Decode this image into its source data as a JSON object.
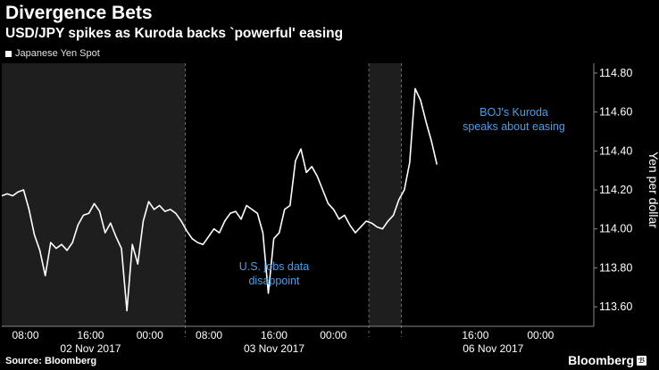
{
  "header": {
    "title": "Divergence Bets",
    "subtitle": "USD/JPY spikes as Kuroda backs `powerful' easing"
  },
  "footer": {
    "source": "Source: Bloomberg",
    "brand": "Bloomberg",
    "brand_mark": "ℬ"
  },
  "colors": {
    "background": "#000000",
    "shade": "#1e1e1e",
    "line": "#ffffff",
    "annotation": "#4a9ee8",
    "grid": "#6a6a6a"
  },
  "chart_data": {
    "type": "line",
    "ylabel": "Yen per dollar",
    "ylim": [
      113.5,
      114.85
    ],
    "y_ticks": [
      "113.60",
      "113.80",
      "114.00",
      "114.20",
      "114.40",
      "114.60",
      "114.80"
    ],
    "x_ticks": [
      "08:00",
      "16:00",
      "00:00",
      "08:00",
      "16:00",
      "00:00",
      "16:00",
      "00:00"
    ],
    "date_labels": [
      "02 Nov 2017",
      "03 Nov 2017",
      "06 Nov 2017"
    ],
    "legend": [
      "Japanese Yen Spot"
    ],
    "grid": "vertical-dashed",
    "series": [
      {
        "name": "Japanese Yen Spot",
        "points": [
          [
            0,
            114.17
          ],
          [
            1,
            114.18
          ],
          [
            2,
            114.17
          ],
          [
            3,
            114.19
          ],
          [
            4,
            114.2
          ],
          [
            5,
            114.1
          ],
          [
            6,
            113.97
          ],
          [
            7,
            113.89
          ],
          [
            8,
            113.76
          ],
          [
            9,
            113.93
          ],
          [
            10,
            113.9
          ],
          [
            11,
            113.92
          ],
          [
            12,
            113.89
          ],
          [
            13,
            113.93
          ],
          [
            14,
            114.02
          ],
          [
            15,
            114.07
          ],
          [
            16,
            114.08
          ],
          [
            17,
            114.13
          ],
          [
            18,
            114.09
          ],
          [
            19,
            113.98
          ],
          [
            20,
            114.03
          ],
          [
            21,
            113.96
          ],
          [
            22,
            113.9
          ],
          [
            23,
            113.58
          ],
          [
            24,
            113.92
          ],
          [
            25,
            113.82
          ],
          [
            26,
            114.04
          ],
          [
            27,
            114.14
          ],
          [
            28,
            114.1
          ],
          [
            29,
            114.12
          ],
          [
            30,
            114.09
          ],
          [
            31,
            114.1
          ],
          [
            32,
            114.08
          ],
          [
            33,
            114.04
          ],
          [
            34,
            113.99
          ],
          [
            35,
            113.95
          ],
          [
            36,
            113.93
          ],
          [
            37,
            113.92
          ],
          [
            38,
            113.96
          ],
          [
            39,
            114.0
          ],
          [
            40,
            113.98
          ],
          [
            41,
            114.04
          ],
          [
            42,
            114.08
          ],
          [
            43,
            114.09
          ],
          [
            44,
            114.05
          ],
          [
            45,
            114.12
          ],
          [
            46,
            114.1
          ],
          [
            47,
            114.08
          ],
          [
            48,
            113.98
          ],
          [
            49,
            113.67
          ],
          [
            50,
            113.95
          ],
          [
            51,
            113.98
          ],
          [
            52,
            114.1
          ],
          [
            53,
            114.12
          ],
          [
            54,
            114.35
          ],
          [
            55,
            114.41
          ],
          [
            56,
            114.29
          ],
          [
            57,
            114.32
          ],
          [
            58,
            114.27
          ],
          [
            59,
            114.2
          ],
          [
            60,
            114.13
          ],
          [
            61,
            114.1
          ],
          [
            62,
            114.05
          ],
          [
            63,
            114.07
          ],
          [
            64,
            114.02
          ],
          [
            65,
            113.98
          ],
          [
            66,
            114.01
          ],
          [
            67,
            114.04
          ],
          [
            68,
            114.03
          ],
          [
            69,
            114.01
          ],
          [
            70,
            114.0
          ],
          [
            71,
            114.04
          ],
          [
            72,
            114.07
          ],
          [
            73,
            114.15
          ],
          [
            74,
            114.2
          ],
          [
            75,
            114.34
          ],
          [
            76,
            114.72
          ],
          [
            77,
            114.66
          ],
          [
            78,
            114.55
          ],
          [
            79,
            114.45
          ],
          [
            80,
            114.33
          ]
        ]
      }
    ],
    "annotations": [
      {
        "text_lines": [
          "U.S. jobs data",
          "disappoint"
        ]
      },
      {
        "text_lines": [
          "BOJ's Kuroda",
          "speaks about easing"
        ]
      }
    ]
  }
}
